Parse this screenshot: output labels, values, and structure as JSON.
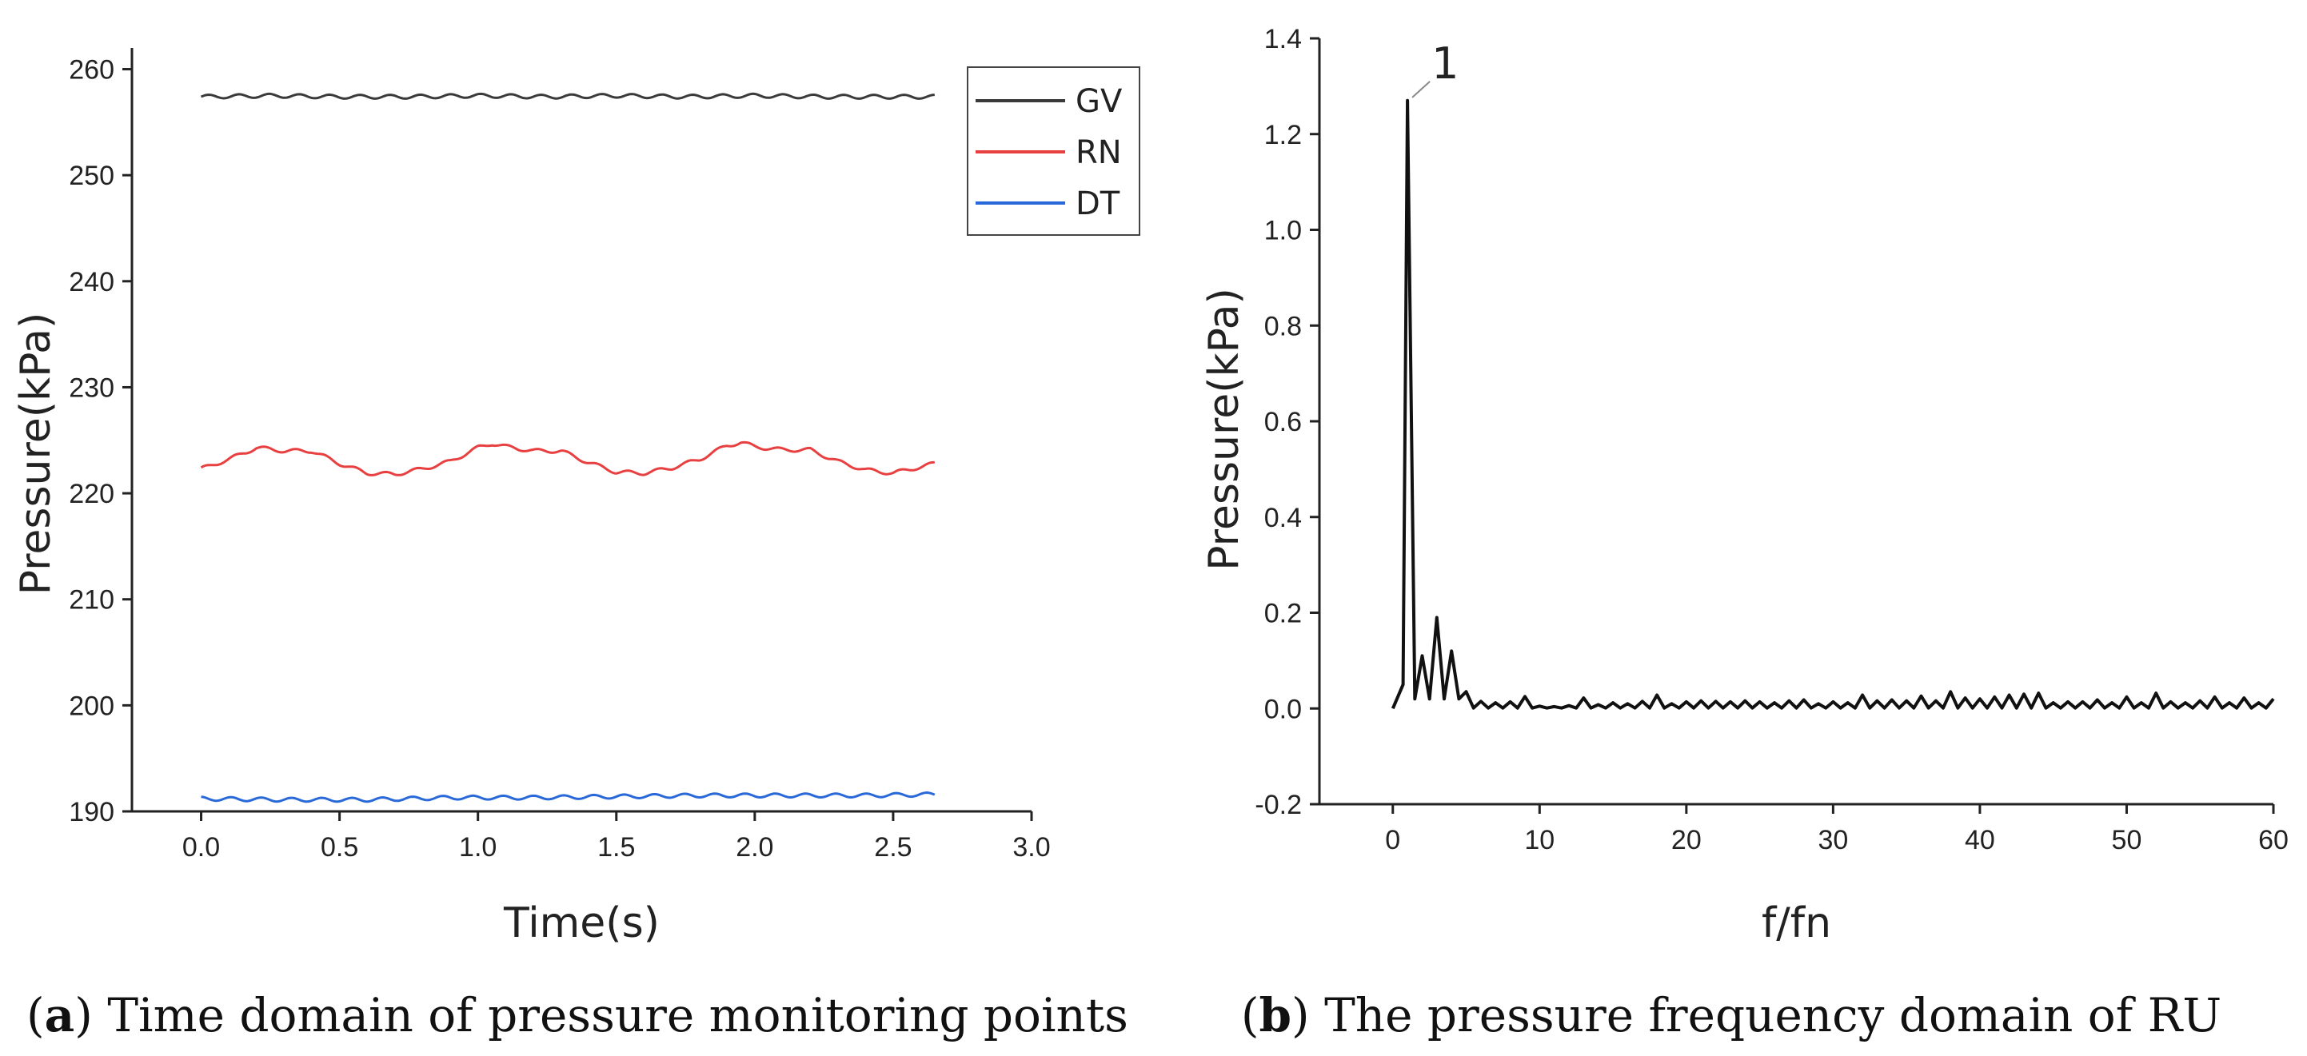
{
  "chart_data": [
    {
      "id": "a",
      "type": "line",
      "title": "",
      "caption_letter": "a",
      "caption_text": "Time domain of pressure monitoring points",
      "xlabel": "Time(s)",
      "ylabel": "Pressure(kPa)",
      "xlim": [
        -0.25,
        3.0
      ],
      "ylim": [
        190,
        262
      ],
      "xticks": [
        0.0,
        0.5,
        1.0,
        1.5,
        2.0,
        2.5,
        3.0
      ],
      "xtick_labels": [
        "0.0",
        "0.5",
        "1.0",
        "1.5",
        "2.0",
        "2.5",
        "3.0"
      ],
      "yticks": [
        190,
        200,
        210,
        220,
        230,
        240,
        250,
        260
      ],
      "ytick_labels": [
        "190",
        "200",
        "210",
        "220",
        "230",
        "240",
        "250",
        "260"
      ],
      "legend_position": "top-right",
      "series": [
        {
          "name": "GV",
          "color": "#3a3a3a",
          "x": [
            0.0,
            0.25,
            0.5,
            0.75,
            1.0,
            1.25,
            1.5,
            1.75,
            2.0,
            2.25,
            2.5,
            2.65
          ],
          "values": [
            257.4,
            257.5,
            257.4,
            257.4,
            257.5,
            257.4,
            257.5,
            257.4,
            257.5,
            257.4,
            257.4,
            257.4
          ]
        },
        {
          "name": "RN",
          "color": "#e84040",
          "x": [
            0.0,
            0.1,
            0.2,
            0.3,
            0.4,
            0.5,
            0.6,
            0.7,
            0.8,
            0.9,
            1.0,
            1.05,
            1.1,
            1.2,
            1.3,
            1.4,
            1.5,
            1.6,
            1.7,
            1.8,
            1.9,
            1.95,
            2.0,
            2.1,
            2.2,
            2.3,
            2.4,
            2.5,
            2.6,
            2.65
          ],
          "values": [
            222.3,
            223.2,
            224.3,
            224.0,
            224.0,
            222.8,
            221.9,
            221.8,
            222.3,
            223.0,
            224.3,
            224.7,
            224.4,
            224.0,
            224.0,
            222.9,
            222.0,
            221.9,
            222.4,
            223.2,
            224.5,
            224.8,
            224.4,
            224.1,
            224.1,
            223.0,
            222.2,
            221.9,
            222.5,
            222.8
          ]
        },
        {
          "name": "DT",
          "color": "#2868d8",
          "x": [
            0.0,
            0.3,
            0.6,
            0.9,
            1.2,
            1.5,
            1.8,
            2.1,
            2.4,
            2.65
          ],
          "values": [
            191.2,
            191.1,
            191.1,
            191.3,
            191.3,
            191.4,
            191.5,
            191.5,
            191.5,
            191.6
          ]
        }
      ]
    },
    {
      "id": "b",
      "type": "line",
      "title": "",
      "caption_letter": "b",
      "caption_text": "The pressure frequency domain of RU",
      "xlabel": "f/fn",
      "ylabel": "Pressure(kPa)",
      "xlim": [
        -5,
        60
      ],
      "ylim": [
        -0.2,
        1.4
      ],
      "xticks": [
        0,
        10,
        20,
        30,
        40,
        50,
        60
      ],
      "xtick_labels": [
        "0",
        "10",
        "20",
        "30",
        "40",
        "50",
        "60"
      ],
      "yticks": [
        -0.2,
        0.0,
        0.2,
        0.4,
        0.6,
        0.8,
        1.0,
        1.2,
        1.4
      ],
      "ytick_labels": [
        "-0.2",
        "0.0",
        "0.2",
        "0.4",
        "0.6",
        "0.8",
        "1.0",
        "1.2",
        "1.4"
      ],
      "annotation": {
        "text": "1",
        "x": 1,
        "y": 1.27
      },
      "series": [
        {
          "name": "RU",
          "color": "#111111",
          "peaks": {
            "x": [
              1,
              2,
              3,
              4,
              5,
              6,
              7,
              8,
              9,
              10,
              11,
              12,
              13,
              14,
              15,
              16,
              17,
              18,
              19,
              20,
              21,
              22,
              23,
              24,
              25,
              26,
              27,
              28,
              29,
              30,
              31,
              32,
              33,
              34,
              35,
              36,
              37,
              38,
              39,
              40,
              41,
              42,
              43,
              44,
              45,
              46,
              47,
              48,
              49,
              50,
              51,
              52,
              53,
              54,
              55,
              56,
              57,
              58,
              59,
              60
            ],
            "values": [
              1.27,
              0.11,
              0.19,
              0.12,
              0.035,
              0.015,
              0.012,
              0.014,
              0.025,
              0.005,
              0.004,
              0.006,
              0.022,
              0.008,
              0.012,
              0.01,
              0.015,
              0.028,
              0.01,
              0.014,
              0.016,
              0.015,
              0.014,
              0.016,
              0.014,
              0.012,
              0.016,
              0.018,
              0.01,
              0.014,
              0.012,
              0.028,
              0.016,
              0.018,
              0.016,
              0.026,
              0.016,
              0.035,
              0.022,
              0.02,
              0.024,
              0.028,
              0.03,
              0.032,
              0.012,
              0.014,
              0.014,
              0.018,
              0.012,
              0.024,
              0.012,
              0.032,
              0.014,
              0.012,
              0.016,
              0.024,
              0.012,
              0.022,
              0.012,
              0.02
            ]
          }
        }
      ]
    }
  ]
}
